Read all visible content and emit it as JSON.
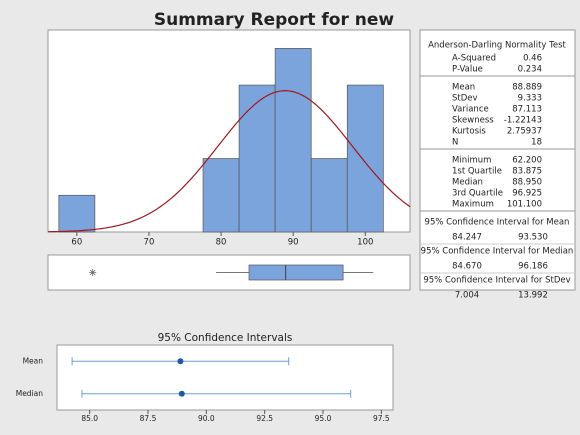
{
  "title": "Summary Report for new",
  "chart_data": [
    {
      "type": "histogram",
      "bins": [
        57.5,
        62.5,
        67.5,
        72.5,
        77.5,
        82.5,
        87.5,
        92.5,
        97.5,
        102.5
      ],
      "counts": [
        1,
        0,
        0,
        0,
        2,
        4,
        5,
        2,
        4
      ],
      "color": "#7ba3dc",
      "xlim": [
        56,
        106.2
      ],
      "ylim": [
        0,
        5.5
      ],
      "xticks": [
        60,
        70,
        80,
        90,
        100
      ],
      "fit": {
        "mean": 88.889,
        "stdev": 9.333,
        "n": 18,
        "color": "#a3171d"
      }
    },
    {
      "type": "boxplot",
      "xlim": [
        56,
        106.2
      ],
      "outliers": [
        62.2
      ],
      "whiskers": [
        79.3,
        101.1
      ],
      "box": [
        83.875,
        88.95,
        96.925
      ],
      "color": "#7ba3dc"
    },
    {
      "type": "interval",
      "title": "95% Confidence Intervals",
      "categories": [
        "Mean",
        "Median"
      ],
      "values": [
        88.889,
        88.95
      ],
      "intervals": [
        [
          84.247,
          93.53
        ],
        [
          84.67,
          96.186
        ]
      ],
      "color": "#1f5aa6",
      "xlim": [
        83.6,
        98
      ],
      "xticks": [
        {
          "value": 85,
          "label": "85.0"
        },
        {
          "value": 87.5,
          "label": "87.5"
        },
        {
          "value": 90,
          "label": "90.0"
        },
        {
          "value": 92.5,
          "label": "92.5"
        },
        {
          "value": 95,
          "label": "95.0"
        },
        {
          "value": 97.5,
          "label": "97.5"
        }
      ]
    }
  ],
  "summary": {
    "sections": [
      {
        "header": "Anderson-Darling Normality Test",
        "rows": [
          [
            "A-Squared",
            "0.46"
          ],
          [
            "P-Value",
            "0.234"
          ]
        ]
      },
      {
        "rows": [
          [
            "Mean",
            "88.889"
          ],
          [
            "StDev",
            "9.333"
          ],
          [
            "Variance",
            "87.113"
          ],
          [
            "Skewness",
            "-1.22143"
          ],
          [
            "Kurtosis",
            "2.75937"
          ],
          [
            "N",
            "18"
          ]
        ]
      },
      {
        "rows": [
          [
            "Minimum",
            "62.200"
          ],
          [
            "1st Quartile",
            "83.875"
          ],
          [
            "Median",
            "88.950"
          ],
          [
            "3rd Quartile",
            "96.925"
          ],
          [
            "Maximum",
            "101.100"
          ]
        ]
      }
    ],
    "intervals": [
      {
        "title": "95% Confidence Interval for Mean",
        "values": [
          "84.247",
          "93.530"
        ]
      },
      {
        "title": "95% Confidence Interval for Median",
        "values": [
          "84.670",
          "96.186"
        ]
      },
      {
        "title": "95% Confidence Interval for StDev",
        "values": [
          "7.004",
          "13.992"
        ]
      }
    ]
  }
}
